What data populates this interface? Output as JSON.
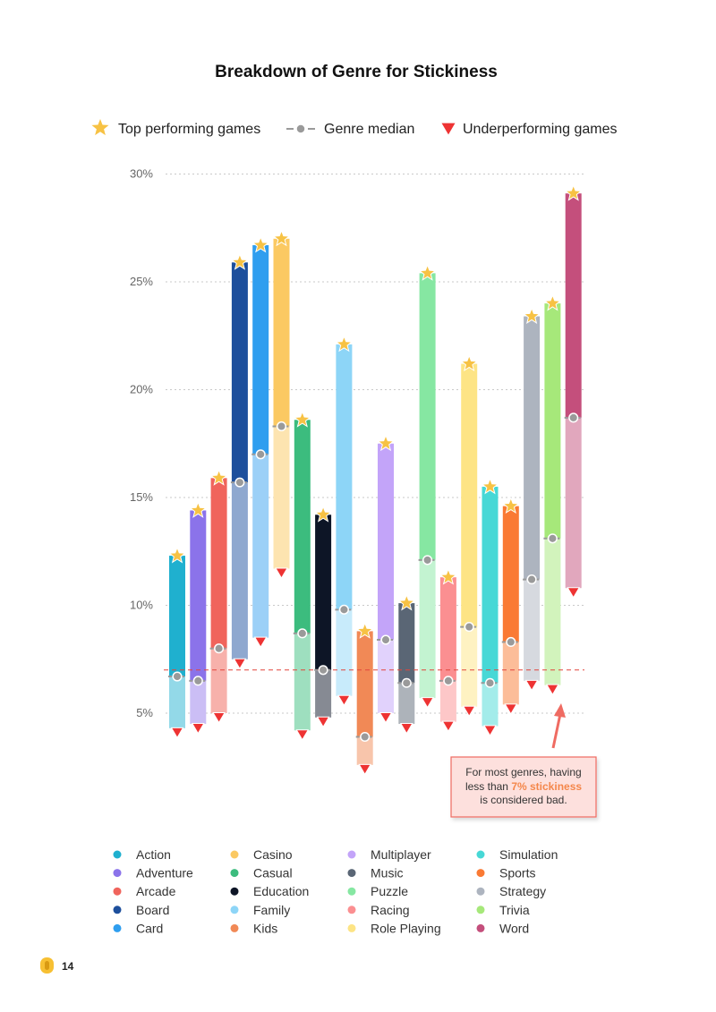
{
  "chart_data": {
    "type": "range-bar",
    "title": "Breakdown of Genre for Stickiness",
    "legend": {
      "top": "Top performing games",
      "median": "Genre median",
      "under": "Underperforming games"
    },
    "y_ticks": [
      "30%",
      "25%",
      "20%",
      "15%",
      "10%",
      "5%"
    ],
    "y_tick_values": [
      30,
      25,
      20,
      15,
      10,
      5
    ],
    "ylim": [
      3,
      30
    ],
    "threshold": 7,
    "colors": {
      "star": "#f7c244",
      "triangle": "#ee3333",
      "median": "#9a9a9a",
      "threshold": "#e2453c"
    },
    "series": [
      {
        "name": "Action",
        "color": "#1fb0cf",
        "light": "#93d9e8",
        "top": 12.3,
        "median": 6.7,
        "bottom": 4.3
      },
      {
        "name": "Adventure",
        "color": "#8b73ea",
        "light": "#cbbef5",
        "top": 14.4,
        "median": 6.5,
        "bottom": 4.5
      },
      {
        "name": "Arcade",
        "color": "#f0645c",
        "light": "#f7b1ab",
        "top": 15.9,
        "median": 8.0,
        "bottom": 5.0
      },
      {
        "name": "Board",
        "color": "#1d4f9c",
        "light": "#8fa8cf",
        "top": 25.9,
        "median": 15.7,
        "bottom": 7.5
      },
      {
        "name": "Card",
        "color": "#2f9eef",
        "light": "#9cd0f7",
        "top": 26.7,
        "median": 17.0,
        "bottom": 8.5
      },
      {
        "name": "Casino",
        "color": "#fbc962",
        "light": "#fde4b0",
        "top": 27.0,
        "median": 18.3,
        "bottom": 11.7
      },
      {
        "name": "Casual",
        "color": "#3cbc7e",
        "light": "#9edfbf",
        "top": 18.6,
        "median": 8.7,
        "bottom": 4.2
      },
      {
        "name": "Education",
        "color": "#0d1526",
        "light": "#868a93",
        "top": 14.2,
        "median": 7.0,
        "bottom": 4.8
      },
      {
        "name": "Family",
        "color": "#8dd5f7",
        "light": "#c8ebfb",
        "top": 22.1,
        "median": 9.8,
        "bottom": 5.8
      },
      {
        "name": "Kids",
        "color": "#f18956",
        "light": "#f8c5ab",
        "top": 8.8,
        "median": 3.9,
        "bottom": 2.6
      },
      {
        "name": "Multiplayer",
        "color": "#c3a4f9",
        "light": "#e1d2fc",
        "top": 17.5,
        "median": 8.4,
        "bottom": 5.0
      },
      {
        "name": "Music",
        "color": "#5a6675",
        "light": "#adb3ba",
        "top": 10.1,
        "median": 6.4,
        "bottom": 4.5
      },
      {
        "name": "Puzzle",
        "color": "#86e7a2",
        "light": "#c3f3d1",
        "top": 25.4,
        "median": 12.1,
        "bottom": 5.7
      },
      {
        "name": "Racing",
        "color": "#fb8f91",
        "light": "#fdc7c8",
        "top": 11.3,
        "median": 6.5,
        "bottom": 4.6
      },
      {
        "name": "Role Playing",
        "color": "#fde485",
        "light": "#fef2c2",
        "top": 21.2,
        "median": 9.0,
        "bottom": 5.3
      },
      {
        "name": "Simulation",
        "color": "#47d8d6",
        "light": "#a3ecea",
        "top": 15.5,
        "median": 6.4,
        "bottom": 4.4
      },
      {
        "name": "Sports",
        "color": "#fa7a34",
        "light": "#fcbd99",
        "top": 14.6,
        "median": 8.3,
        "bottom": 5.4
      },
      {
        "name": "Strategy",
        "color": "#adb4bf",
        "light": "#d6d9df",
        "top": 23.4,
        "median": 11.2,
        "bottom": 6.5
      },
      {
        "name": "Trivia",
        "color": "#a6e87a",
        "light": "#d2f3bc",
        "top": 24.0,
        "median": 13.1,
        "bottom": 6.3
      },
      {
        "name": "Word",
        "color": "#c44f7c",
        "light": "#e1a7bd",
        "top": 29.1,
        "median": 18.7,
        "bottom": 10.8
      }
    ]
  },
  "annotation": {
    "line1": "For most genres, having",
    "line2_prefix": "less than ",
    "line2_highlight": "7% stickiness",
    "line3": "is considered bad."
  },
  "page": {
    "number": "14"
  }
}
